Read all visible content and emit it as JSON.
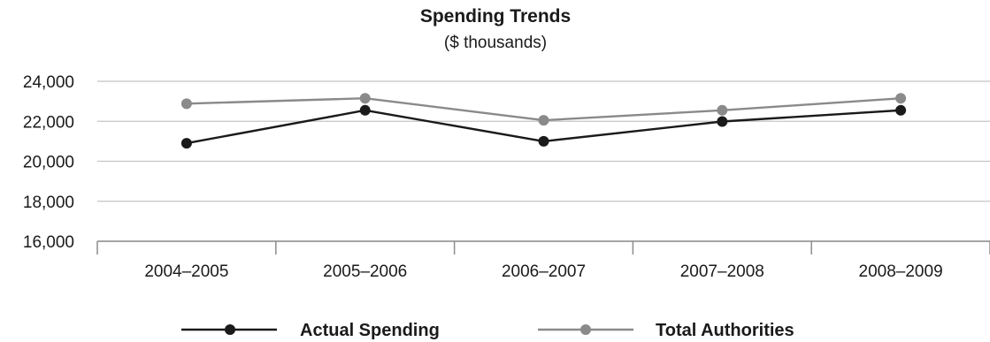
{
  "chart_data": {
    "type": "line",
    "title": "Spending Trends",
    "subtitle": "($ thousands)",
    "xlabel": "",
    "ylabel": "",
    "categories": [
      "2004–2005",
      "2005–2006",
      "2006–2007",
      "2007–2008",
      "2008–2009"
    ],
    "yticks": [
      "16,000",
      "18,000",
      "20,000",
      "22,000",
      "24,000"
    ],
    "ylim": [
      16000,
      24000
    ],
    "grid": true,
    "legend_position": "bottom",
    "series": [
      {
        "name": "Actual Spending",
        "color": "#1a1a1a",
        "values": [
          20900,
          22550,
          21000,
          21990,
          22550
        ]
      },
      {
        "name": "Total Authorities",
        "color": "#8a8a8a",
        "values": [
          22880,
          23150,
          22050,
          22550,
          23150
        ]
      }
    ]
  }
}
